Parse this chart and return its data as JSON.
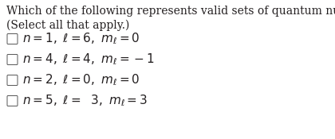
{
  "title": "Which of the following represents valid sets of quantum numbers?",
  "subtitle": "(Select all that apply.)",
  "options": [
    "$n = 1,\\ \\ell = 6,\\ m_\\ell = 0$",
    "$n = 4,\\ \\ell = 4,\\ m_\\ell = -1$",
    "$n = 2,\\ \\ell = 0,\\ m_\\ell = 0$",
    "$n = 5,\\ \\ell =\\ \\ 3,\\ m_\\ell = 3$"
  ],
  "background_color": "#ffffff",
  "text_color": "#231f20",
  "title_fontsize": 10.0,
  "subtitle_fontsize": 10.0,
  "option_fontsize": 11.0
}
